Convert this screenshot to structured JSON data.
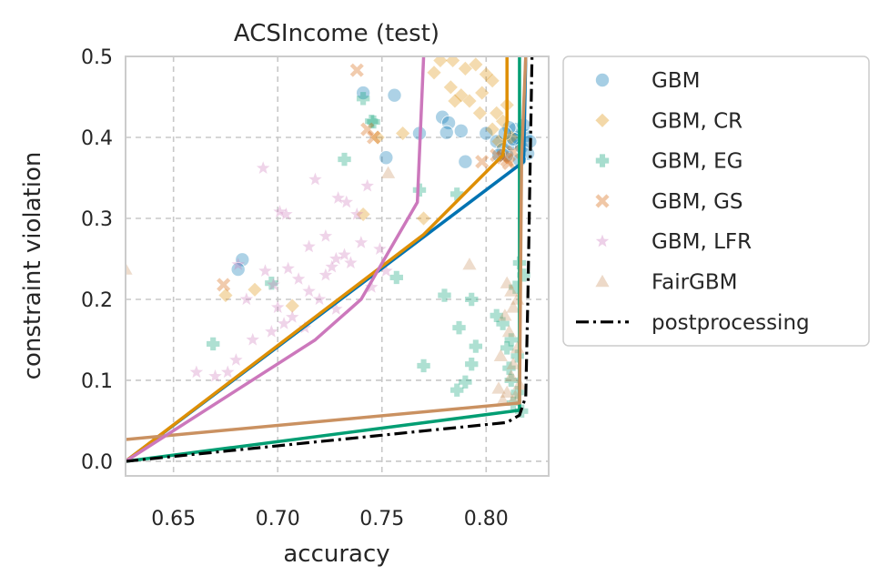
{
  "chart_data": {
    "type": "scatter",
    "title": "ACSIncome (test)",
    "xlabel": "accuracy",
    "ylabel": "constraint violation",
    "xlim": [
      0.627,
      0.83
    ],
    "ylim": [
      -0.018,
      0.5
    ],
    "x_ticks": [
      "0.65",
      "0.70",
      "0.75",
      "0.80"
    ],
    "y_ticks": [
      "0.0",
      "0.1",
      "0.2",
      "0.3",
      "0.4",
      "0.5"
    ],
    "grid": true,
    "legend_position": "outside right",
    "series": [
      {
        "name": "GBM",
        "kind": "points",
        "marker": "circle",
        "color": "#0173b2",
        "points": [
          [
            0.741,
            0.455
          ],
          [
            0.756,
            0.452
          ],
          [
            0.779,
            0.425
          ],
          [
            0.782,
            0.418
          ],
          [
            0.768,
            0.405
          ],
          [
            0.781,
            0.406
          ],
          [
            0.788,
            0.408
          ],
          [
            0.752,
            0.375
          ],
          [
            0.79,
            0.37
          ],
          [
            0.683,
            0.249
          ],
          [
            0.681,
            0.237
          ],
          [
            0.8,
            0.405
          ],
          [
            0.805,
            0.395
          ],
          [
            0.808,
            0.385
          ],
          [
            0.81,
            0.378
          ],
          [
            0.812,
            0.392
          ],
          [
            0.815,
            0.4
          ],
          [
            0.817,
            0.388
          ],
          [
            0.819,
            0.402
          ],
          [
            0.82,
            0.38
          ],
          [
            0.814,
            0.41
          ],
          [
            0.818,
            0.415
          ],
          [
            0.813,
            0.398
          ],
          [
            0.811,
            0.412
          ],
          [
            0.816,
            0.372
          ],
          [
            0.821,
            0.395
          ],
          [
            0.806,
            0.378
          ],
          [
            0.809,
            0.405
          ]
        ]
      },
      {
        "name": "GBM, CR",
        "kind": "points",
        "marker": "diamond",
        "color": "#de8f05",
        "points": [
          [
            0.775,
            0.48
          ],
          [
            0.778,
            0.495
          ],
          [
            0.784,
            0.495
          ],
          [
            0.79,
            0.485
          ],
          [
            0.795,
            0.49
          ],
          [
            0.8,
            0.478
          ],
          [
            0.783,
            0.462
          ],
          [
            0.788,
            0.452
          ],
          [
            0.792,
            0.445
          ],
          [
            0.798,
            0.455
          ],
          [
            0.803,
            0.47
          ],
          [
            0.805,
            0.43
          ],
          [
            0.808,
            0.42
          ],
          [
            0.81,
            0.44
          ],
          [
            0.812,
            0.4
          ],
          [
            0.806,
            0.395
          ],
          [
            0.748,
            0.4
          ],
          [
            0.76,
            0.405
          ],
          [
            0.77,
            0.3
          ],
          [
            0.741,
            0.305
          ],
          [
            0.689,
            0.212
          ],
          [
            0.675,
            0.205
          ],
          [
            0.707,
            0.192
          ],
          [
            0.797,
            0.43
          ],
          [
            0.803,
            0.41
          ],
          [
            0.785,
            0.445
          ]
        ]
      },
      {
        "name": "GBM, EG",
        "kind": "points",
        "marker": "plus",
        "color": "#029e73",
        "points": [
          [
            0.732,
            0.373
          ],
          [
            0.745,
            0.42
          ],
          [
            0.741,
            0.448
          ],
          [
            0.746,
            0.419
          ],
          [
            0.768,
            0.335
          ],
          [
            0.786,
            0.33
          ],
          [
            0.757,
            0.227
          ],
          [
            0.78,
            0.205
          ],
          [
            0.793,
            0.2
          ],
          [
            0.787,
            0.165
          ],
          [
            0.795,
            0.142
          ],
          [
            0.77,
            0.118
          ],
          [
            0.79,
            0.098
          ],
          [
            0.786,
            0.088
          ],
          [
            0.793,
            0.12
          ],
          [
            0.805,
            0.18
          ],
          [
            0.81,
            0.14
          ],
          [
            0.812,
            0.1
          ],
          [
            0.815,
            0.085
          ],
          [
            0.817,
            0.062
          ],
          [
            0.816,
            0.245
          ],
          [
            0.814,
            0.215
          ],
          [
            0.808,
            0.17
          ],
          [
            0.812,
            0.15
          ],
          [
            0.818,
            0.23
          ],
          [
            0.669,
            0.145
          ],
          [
            0.697,
            0.22
          ],
          [
            0.815,
            0.13
          ],
          [
            0.811,
            0.115
          ],
          [
            0.813,
            0.072
          ]
        ]
      },
      {
        "name": "GBM, GS",
        "kind": "points",
        "marker": "x",
        "color": "#d55e00",
        "points": [
          [
            0.738,
            0.483
          ],
          [
            0.743,
            0.41
          ],
          [
            0.746,
            0.4
          ],
          [
            0.674,
            0.218
          ],
          [
            0.798,
            0.37
          ],
          [
            0.805,
            0.378
          ],
          [
            0.81,
            0.372
          ],
          [
            0.813,
            0.382
          ],
          [
            0.811,
            0.368
          ],
          [
            0.808,
            0.375
          ]
        ]
      },
      {
        "name": "GBM, LFR",
        "kind": "points",
        "marker": "star",
        "color": "#cc78bc",
        "points": [
          [
            0.693,
            0.362
          ],
          [
            0.718,
            0.348
          ],
          [
            0.743,
            0.34
          ],
          [
            0.729,
            0.325
          ],
          [
            0.738,
            0.305
          ],
          [
            0.733,
            0.32
          ],
          [
            0.701,
            0.308
          ],
          [
            0.704,
            0.305
          ],
          [
            0.728,
            0.25
          ],
          [
            0.732,
            0.255
          ],
          [
            0.715,
            0.265
          ],
          [
            0.723,
            0.278
          ],
          [
            0.74,
            0.27
          ],
          [
            0.735,
            0.245
          ],
          [
            0.726,
            0.24
          ],
          [
            0.749,
            0.262
          ],
          [
            0.705,
            0.238
          ],
          [
            0.681,
            0.243
          ],
          [
            0.694,
            0.235
          ],
          [
            0.698,
            0.218
          ],
          [
            0.71,
            0.225
          ],
          [
            0.715,
            0.21
          ],
          [
            0.723,
            0.23
          ],
          [
            0.7,
            0.19
          ],
          [
            0.707,
            0.178
          ],
          [
            0.713,
            0.165
          ],
          [
            0.697,
            0.16
          ],
          [
            0.688,
            0.15
          ],
          [
            0.68,
            0.125
          ],
          [
            0.676,
            0.11
          ],
          [
            0.67,
            0.105
          ],
          [
            0.661,
            0.11
          ],
          [
            0.685,
            0.2
          ],
          [
            0.72,
            0.2
          ],
          [
            0.728,
            0.188
          ],
          [
            0.745,
            0.215
          ],
          [
            0.752,
            0.235
          ],
          [
            0.703,
            0.17
          ]
        ]
      },
      {
        "name": "FairGBM",
        "kind": "points",
        "marker": "triangle",
        "color": "#ca9161",
        "points": [
          [
            0.627,
            0.237
          ],
          [
            0.753,
            0.356
          ],
          [
            0.792,
            0.243
          ],
          [
            0.81,
            0.22
          ],
          [
            0.812,
            0.21
          ],
          [
            0.811,
            0.16
          ],
          [
            0.815,
            0.14
          ],
          [
            0.813,
            0.12
          ],
          [
            0.812,
            0.105
          ],
          [
            0.816,
            0.095
          ],
          [
            0.81,
            0.085
          ],
          [
            0.814,
            0.08
          ],
          [
            0.808,
            0.075
          ],
          [
            0.806,
            0.09
          ],
          [
            0.809,
            0.18
          ],
          [
            0.813,
            0.19
          ],
          [
            0.807,
            0.13
          ],
          [
            0.815,
            0.2
          ]
        ]
      },
      {
        "name": "",
        "kind": "line",
        "style": "solid",
        "color": "#0173b2",
        "points": [
          [
            0.627,
            0.0
          ],
          [
            0.818,
            0.37
          ],
          [
            0.819,
            0.5
          ]
        ]
      },
      {
        "name": "",
        "kind": "line",
        "style": "solid",
        "color": "#de8f05",
        "points": [
          [
            0.627,
            0.0
          ],
          [
            0.77,
            0.28
          ],
          [
            0.808,
            0.378
          ],
          [
            0.81,
            0.42
          ],
          [
            0.81,
            0.5
          ]
        ]
      },
      {
        "name": "",
        "kind": "line",
        "style": "solid",
        "color": "#029e73",
        "points": [
          [
            0.627,
            0.0
          ],
          [
            0.816,
            0.063
          ],
          [
            0.816,
            0.5
          ]
        ]
      },
      {
        "name": "",
        "kind": "line",
        "style": "solid",
        "color": "#ca9161",
        "points": [
          [
            0.627,
            0.027
          ],
          [
            0.816,
            0.072
          ],
          [
            0.817,
            0.375
          ],
          [
            0.819,
            0.5
          ]
        ]
      },
      {
        "name": "",
        "kind": "line",
        "style": "solid",
        "color": "#cc78bc",
        "points": [
          [
            0.627,
            0.0
          ],
          [
            0.718,
            0.15
          ],
          [
            0.74,
            0.2
          ],
          [
            0.767,
            0.32
          ],
          [
            0.77,
            0.5
          ]
        ]
      },
      {
        "name": "postprocessing",
        "kind": "line",
        "style": "dashdot",
        "color": "#000000",
        "points": [
          [
            0.627,
            0.0
          ],
          [
            0.81,
            0.048
          ],
          [
            0.816,
            0.057
          ],
          [
            0.819,
            0.08
          ],
          [
            0.82,
            0.2
          ],
          [
            0.822,
            0.5
          ]
        ]
      }
    ],
    "legend": [
      {
        "label": "GBM",
        "marker": "circle",
        "color": "#0173b2"
      },
      {
        "label": "GBM, CR",
        "marker": "diamond",
        "color": "#de8f05"
      },
      {
        "label": "GBM, EG",
        "marker": "plus",
        "color": "#029e73"
      },
      {
        "label": "GBM, GS",
        "marker": "x",
        "color": "#d55e00"
      },
      {
        "label": "GBM, LFR",
        "marker": "star",
        "color": "#cc78bc"
      },
      {
        "label": "FairGBM",
        "marker": "triangle",
        "color": "#ca9161"
      },
      {
        "label": "postprocessing",
        "marker": "dashdot-line",
        "color": "#000000"
      }
    ]
  }
}
